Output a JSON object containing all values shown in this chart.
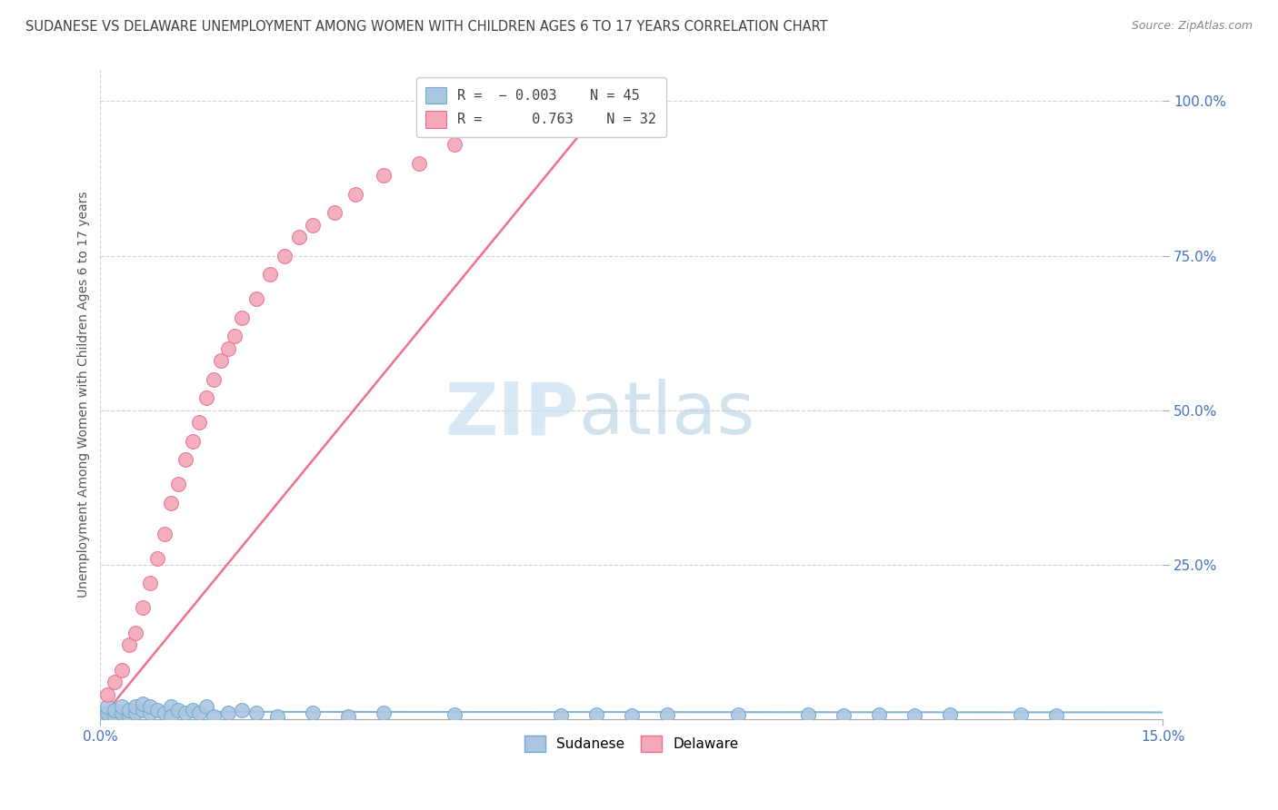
{
  "title": "SUDANESE VS DELAWARE UNEMPLOYMENT AMONG WOMEN WITH CHILDREN AGES 6 TO 17 YEARS CORRELATION CHART",
  "source": "Source: ZipAtlas.com",
  "ylabel": "Unemployment Among Women with Children Ages 6 to 17 years",
  "sudanese_R": "-0.003",
  "sudanese_N": "45",
  "delaware_R": "0.763",
  "delaware_N": "32",
  "sudanese_color": "#adc6e0",
  "delaware_color": "#f4a8b8",
  "sudanese_edge_color": "#6fa8d0",
  "delaware_edge_color": "#e87090",
  "sudanese_line_color": "#6fa8d0",
  "delaware_line_color": "#f06080",
  "r_value_color": "#4472c4",
  "n_value_color": "#4472c4",
  "watermark_zip_color": "#c8dff0",
  "watermark_atlas_color": "#b0cce0",
  "background_color": "#ffffff",
  "grid_color": "#cccccc",
  "tick_color": "#4472c4",
  "title_color": "#404040",
  "source_color": "#888888",
  "ylabel_color": "#555555",
  "sudanese_x": [
    0.0005,
    0.001,
    0.001,
    0.002,
    0.002,
    0.003,
    0.003,
    0.004,
    0.004,
    0.005,
    0.005,
    0.006,
    0.006,
    0.007,
    0.007,
    0.008,
    0.009,
    0.01,
    0.01,
    0.011,
    0.012,
    0.013,
    0.014,
    0.015,
    0.016,
    0.018,
    0.02,
    0.022,
    0.025,
    0.03,
    0.035,
    0.04,
    0.05,
    0.065,
    0.07,
    0.075,
    0.08,
    0.09,
    0.1,
    0.105,
    0.11,
    0.115,
    0.12,
    0.13,
    0.135
  ],
  "sudanese_y": [
    0.005,
    0.01,
    0.02,
    0.005,
    0.015,
    0.01,
    0.02,
    0.005,
    0.015,
    0.01,
    0.02,
    0.015,
    0.025,
    0.01,
    0.02,
    0.015,
    0.01,
    0.02,
    0.005,
    0.015,
    0.01,
    0.015,
    0.01,
    0.02,
    0.005,
    0.01,
    0.015,
    0.01,
    0.005,
    0.01,
    0.005,
    0.01,
    0.008,
    0.006,
    0.008,
    0.006,
    0.008,
    0.007,
    0.008,
    0.006,
    0.007,
    0.006,
    0.008,
    0.007,
    0.006
  ],
  "delaware_x": [
    0.001,
    0.002,
    0.003,
    0.004,
    0.005,
    0.006,
    0.007,
    0.008,
    0.009,
    0.01,
    0.011,
    0.012,
    0.013,
    0.014,
    0.015,
    0.016,
    0.017,
    0.018,
    0.019,
    0.02,
    0.022,
    0.024,
    0.026,
    0.028,
    0.03,
    0.033,
    0.036,
    0.04,
    0.045,
    0.05,
    0.058,
    0.065
  ],
  "delaware_y": [
    0.04,
    0.06,
    0.08,
    0.12,
    0.14,
    0.18,
    0.22,
    0.26,
    0.3,
    0.35,
    0.38,
    0.42,
    0.45,
    0.48,
    0.52,
    0.55,
    0.58,
    0.6,
    0.62,
    0.65,
    0.68,
    0.72,
    0.75,
    0.78,
    0.8,
    0.82,
    0.85,
    0.88,
    0.9,
    0.93,
    0.96,
    0.99
  ],
  "su_line_x": [
    0.0,
    0.15
  ],
  "su_line_y": [
    0.012,
    0.011
  ],
  "de_line_x": [
    0.0,
    0.073
  ],
  "de_line_y": [
    0.0,
    1.02
  ],
  "xlim": [
    0.0,
    0.15
  ],
  "ylim": [
    0.0,
    1.05
  ],
  "ytick_vals": [
    0.25,
    0.5,
    0.75,
    1.0
  ],
  "ytick_labels": [
    "25.0%",
    "50.0%",
    "75.0%",
    "100.0%"
  ],
  "xtick_vals": [
    0.0,
    0.15
  ],
  "xtick_labels": [
    "0.0%",
    "15.0%"
  ]
}
